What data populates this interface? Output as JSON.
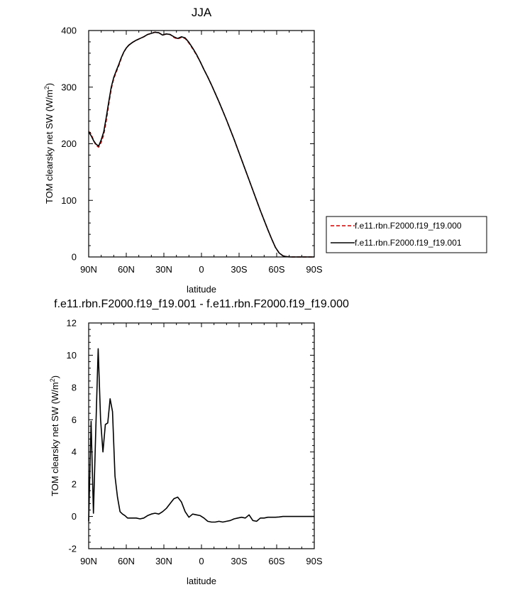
{
  "chart_data": [
    {
      "type": "line",
      "title": "JJA",
      "xlabel": "latitude",
      "ylabel": "TOM clearsky net SW (W/m",
      "ylabel_sup": "2",
      "ylabel_close": ")",
      "xlim": [
        90,
        -90
      ],
      "ylim": [
        0,
        400
      ],
      "xticks": [
        90,
        60,
        30,
        0,
        -30,
        -60,
        -90
      ],
      "xtick_labels": [
        "90N",
        "60N",
        "30N",
        "0",
        "30S",
        "60S",
        "90S"
      ],
      "yticks": [
        0,
        100,
        200,
        300,
        400
      ],
      "ytick_labels": [
        "0",
        "100",
        "200",
        "300",
        "400"
      ],
      "grid": false,
      "legend_position": "right",
      "series": [
        {
          "name": "f.e11.rbn.F2000.f19_f19.000",
          "color": "#cc0000",
          "dash": "dashed",
          "x": [
            90,
            88,
            86,
            84,
            82,
            80,
            78,
            76,
            74,
            72,
            70,
            68,
            66,
            64,
            62,
            60,
            58,
            55,
            52,
            49,
            46,
            43,
            40,
            37,
            34,
            31,
            28,
            25,
            22,
            19,
            16,
            13,
            10,
            7,
            4,
            1,
            -2,
            -5,
            -8,
            -11,
            -14,
            -17,
            -20,
            -23,
            -26,
            -29,
            -32,
            -35,
            -38,
            -41,
            -44,
            -47,
            -50,
            -53,
            -56,
            -59,
            -62,
            -65,
            -68,
            -71,
            -74,
            -77,
            -80,
            -84,
            -88,
            -90
          ],
          "y": [
            222,
            217,
            205,
            197,
            194,
            203,
            216,
            240,
            270,
            297,
            315,
            327,
            338,
            351,
            362,
            369,
            374,
            379,
            383,
            386,
            389,
            393,
            395,
            397,
            396,
            392,
            394,
            393,
            388,
            385,
            388,
            386,
            378,
            368,
            357,
            345,
            331,
            318,
            304,
            289,
            274,
            258,
            242,
            225,
            208,
            190,
            172,
            154,
            136,
            118,
            100,
            82,
            65,
            48,
            32,
            17,
            7,
            2,
            0.5,
            0,
            0,
            0,
            0,
            0,
            0,
            0
          ]
        },
        {
          "name": "f.e11.rbn.F2000.f19_f19.001",
          "color": "#000000",
          "dash": "solid",
          "x": [
            90,
            88,
            86,
            84,
            82,
            80,
            78,
            76,
            74,
            72,
            70,
            68,
            66,
            64,
            62,
            60,
            58,
            55,
            52,
            49,
            46,
            43,
            40,
            37,
            34,
            31,
            28,
            25,
            22,
            19,
            16,
            13,
            10,
            7,
            4,
            1,
            -2,
            -5,
            -8,
            -11,
            -14,
            -17,
            -20,
            -23,
            -26,
            -29,
            -32,
            -35,
            -38,
            -41,
            -44,
            -47,
            -50,
            -53,
            -56,
            -59,
            -62,
            -65,
            -68,
            -71,
            -74,
            -77,
            -80,
            -84,
            -88,
            -90
          ],
          "y": [
            221,
            214,
            205,
            199,
            196,
            207,
            221,
            246,
            274,
            300,
            317,
            329,
            340,
            352,
            362,
            369,
            374,
            379,
            383,
            386,
            389,
            393,
            395,
            397,
            396,
            392,
            394,
            393,
            389,
            386,
            389,
            387,
            379,
            369,
            358,
            345,
            331,
            318,
            304,
            289,
            274,
            258,
            242,
            225,
            208,
            190,
            172,
            154,
            136,
            118,
            100,
            82,
            65,
            48,
            32,
            17,
            7,
            2,
            0.5,
            0,
            0,
            0,
            0,
            0,
            0,
            0
          ]
        }
      ]
    },
    {
      "type": "line",
      "title": "f.e11.rbn.F2000.f19_f19.001 - f.e11.rbn.F2000.f19_f19.000",
      "xlabel": "latitude",
      "ylabel": "TOM clearsky net SW (W/m",
      "ylabel_sup": "2",
      "ylabel_close": ")",
      "xlim": [
        90,
        -90
      ],
      "ylim": [
        -2,
        12
      ],
      "xticks": [
        90,
        60,
        30,
        0,
        -30,
        -60,
        -90
      ],
      "xtick_labels": [
        "90N",
        "60N",
        "30N",
        "0",
        "30S",
        "60S",
        "90S"
      ],
      "yticks": [
        -2,
        0,
        2,
        4,
        6,
        8,
        10,
        12
      ],
      "ytick_labels": [
        "-2",
        "0",
        "2",
        "4",
        "6",
        "8",
        "10",
        "12"
      ],
      "grid": false,
      "series": [
        {
          "color": "#000000",
          "dash": "solid",
          "x": [
            90,
            88.1,
            86.2,
            84.3,
            82.4,
            80.5,
            78.6,
            76.7,
            74.8,
            72.9,
            71,
            69,
            67,
            65,
            63,
            61,
            59,
            57,
            55,
            52,
            49,
            46,
            43,
            40,
            37,
            34,
            31,
            28,
            25,
            22,
            19,
            16,
            13,
            10,
            7,
            4,
            1,
            -2,
            -5,
            -8,
            -11,
            -14,
            -17,
            -20,
            -23,
            -26,
            -29,
            -32,
            -35,
            -38,
            -41,
            -44,
            -47,
            -50,
            -53,
            -56,
            -59,
            -62,
            -65,
            -68,
            -71,
            -74,
            -77,
            -80,
            -84,
            -88,
            -90
          ],
          "y": [
            -0.3,
            5.9,
            0.2,
            5.5,
            10.4,
            6.0,
            4.0,
            5.7,
            5.8,
            7.3,
            6.5,
            2.5,
            1.2,
            0.3,
            0.15,
            0.05,
            -0.1,
            -0.1,
            -0.1,
            -0.1,
            -0.15,
            -0.1,
            0.05,
            0.15,
            0.2,
            0.15,
            0.3,
            0.5,
            0.8,
            1.1,
            1.2,
            0.9,
            0.3,
            -0.05,
            0.15,
            0.1,
            0.05,
            -0.1,
            -0.3,
            -0.35,
            -0.35,
            -0.3,
            -0.35,
            -0.3,
            -0.25,
            -0.15,
            -0.1,
            -0.05,
            -0.1,
            0.1,
            -0.25,
            -0.3,
            -0.1,
            -0.1,
            -0.05,
            -0.05,
            -0.05,
            -0.03,
            0,
            0,
            0,
            0,
            0,
            0,
            0,
            0,
            0
          ]
        }
      ]
    }
  ]
}
